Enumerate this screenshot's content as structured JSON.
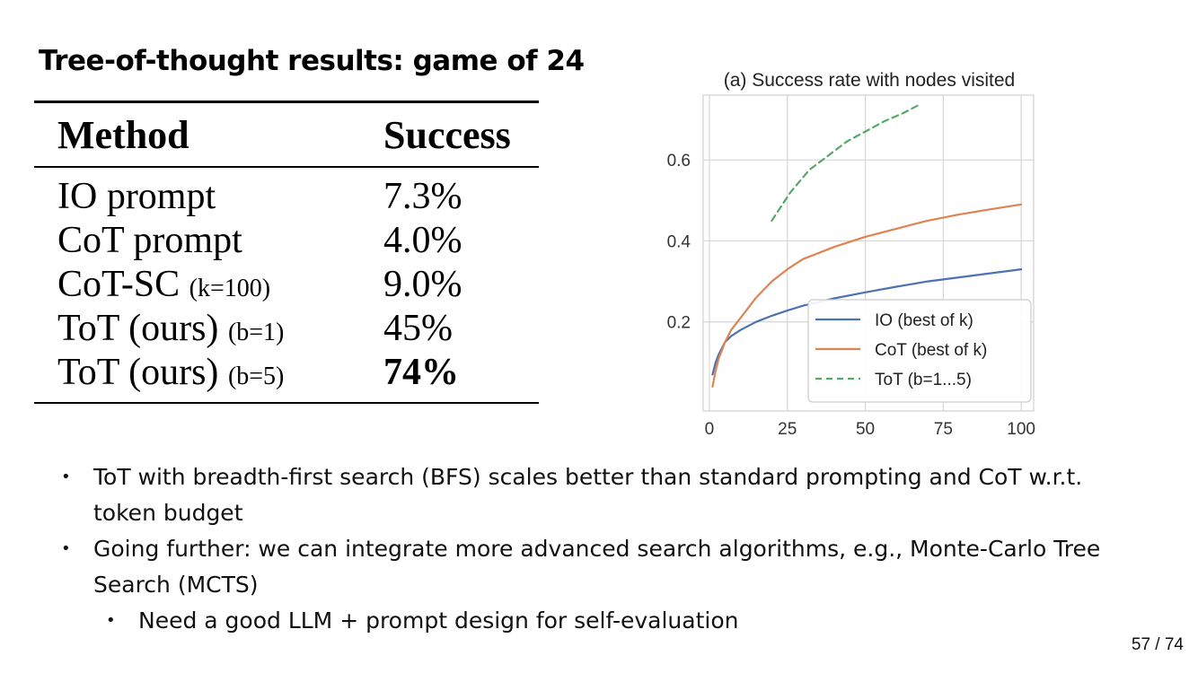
{
  "slide": {
    "title": "Tree-of-thought results: game of 24",
    "page_number": "57 / 74"
  },
  "table": {
    "headers": [
      "Method",
      "Success"
    ],
    "rows": [
      {
        "method": "IO prompt",
        "note": "",
        "success": "7.3%"
      },
      {
        "method": "CoT prompt",
        "note": "",
        "success": "4.0%"
      },
      {
        "method": "CoT-SC ",
        "note": "(k=100)",
        "success": "9.0%"
      },
      {
        "method": "ToT (ours) ",
        "note": "(b=1)",
        "success": "45%"
      },
      {
        "method": "ToT (ours) ",
        "note": "(b=5)",
        "success": "74%"
      }
    ]
  },
  "chart_data": {
    "type": "line",
    "title": "(a) Success rate with nodes visited",
    "xlabel": "",
    "ylabel": "",
    "xlim": [
      -2,
      104
    ],
    "ylim": [
      -0.02,
      0.76
    ],
    "x_ticks": [
      0,
      25,
      50,
      75,
      100
    ],
    "y_ticks": [
      0.2,
      0.4,
      0.6
    ],
    "grid": true,
    "legend_position": "lower-right",
    "series": [
      {
        "name": "IO (best of k)",
        "color": "#4c72b0",
        "style": "solid",
        "x": [
          1,
          2,
          3,
          5,
          7,
          10,
          15,
          20,
          25,
          30,
          40,
          50,
          60,
          70,
          80,
          90,
          100
        ],
        "y": [
          0.07,
          0.1,
          0.12,
          0.15,
          0.165,
          0.18,
          0.2,
          0.215,
          0.228,
          0.24,
          0.258,
          0.273,
          0.287,
          0.3,
          0.31,
          0.32,
          0.33
        ]
      },
      {
        "name": "CoT (best of k)",
        "color": "#dd8452",
        "style": "solid",
        "x": [
          1,
          2,
          3,
          5,
          7,
          10,
          15,
          20,
          25,
          30,
          40,
          50,
          60,
          70,
          80,
          90,
          100
        ],
        "y": [
          0.04,
          0.08,
          0.11,
          0.15,
          0.18,
          0.21,
          0.26,
          0.3,
          0.33,
          0.355,
          0.385,
          0.41,
          0.43,
          0.45,
          0.465,
          0.478,
          0.49
        ]
      },
      {
        "name": "ToT (b=1...5)",
        "color": "#55a868",
        "style": "dashed",
        "x": [
          20,
          26,
          32,
          38,
          44,
          50,
          56,
          62,
          67
        ],
        "y": [
          0.45,
          0.52,
          0.575,
          0.61,
          0.645,
          0.67,
          0.695,
          0.715,
          0.735
        ]
      }
    ]
  },
  "bullets": [
    {
      "level": 1,
      "text": "ToT with breadth-first search (BFS) scales better than standard prompting and CoT w.r.t. token budget"
    },
    {
      "level": 1,
      "text": "Going further: we can integrate more advanced search algorithms, e.g., Monte-Carlo Tree Search (MCTS)"
    },
    {
      "level": 2,
      "text": "Need a good LLM + prompt design for self-evaluation"
    }
  ],
  "bullet_symbol": "•"
}
